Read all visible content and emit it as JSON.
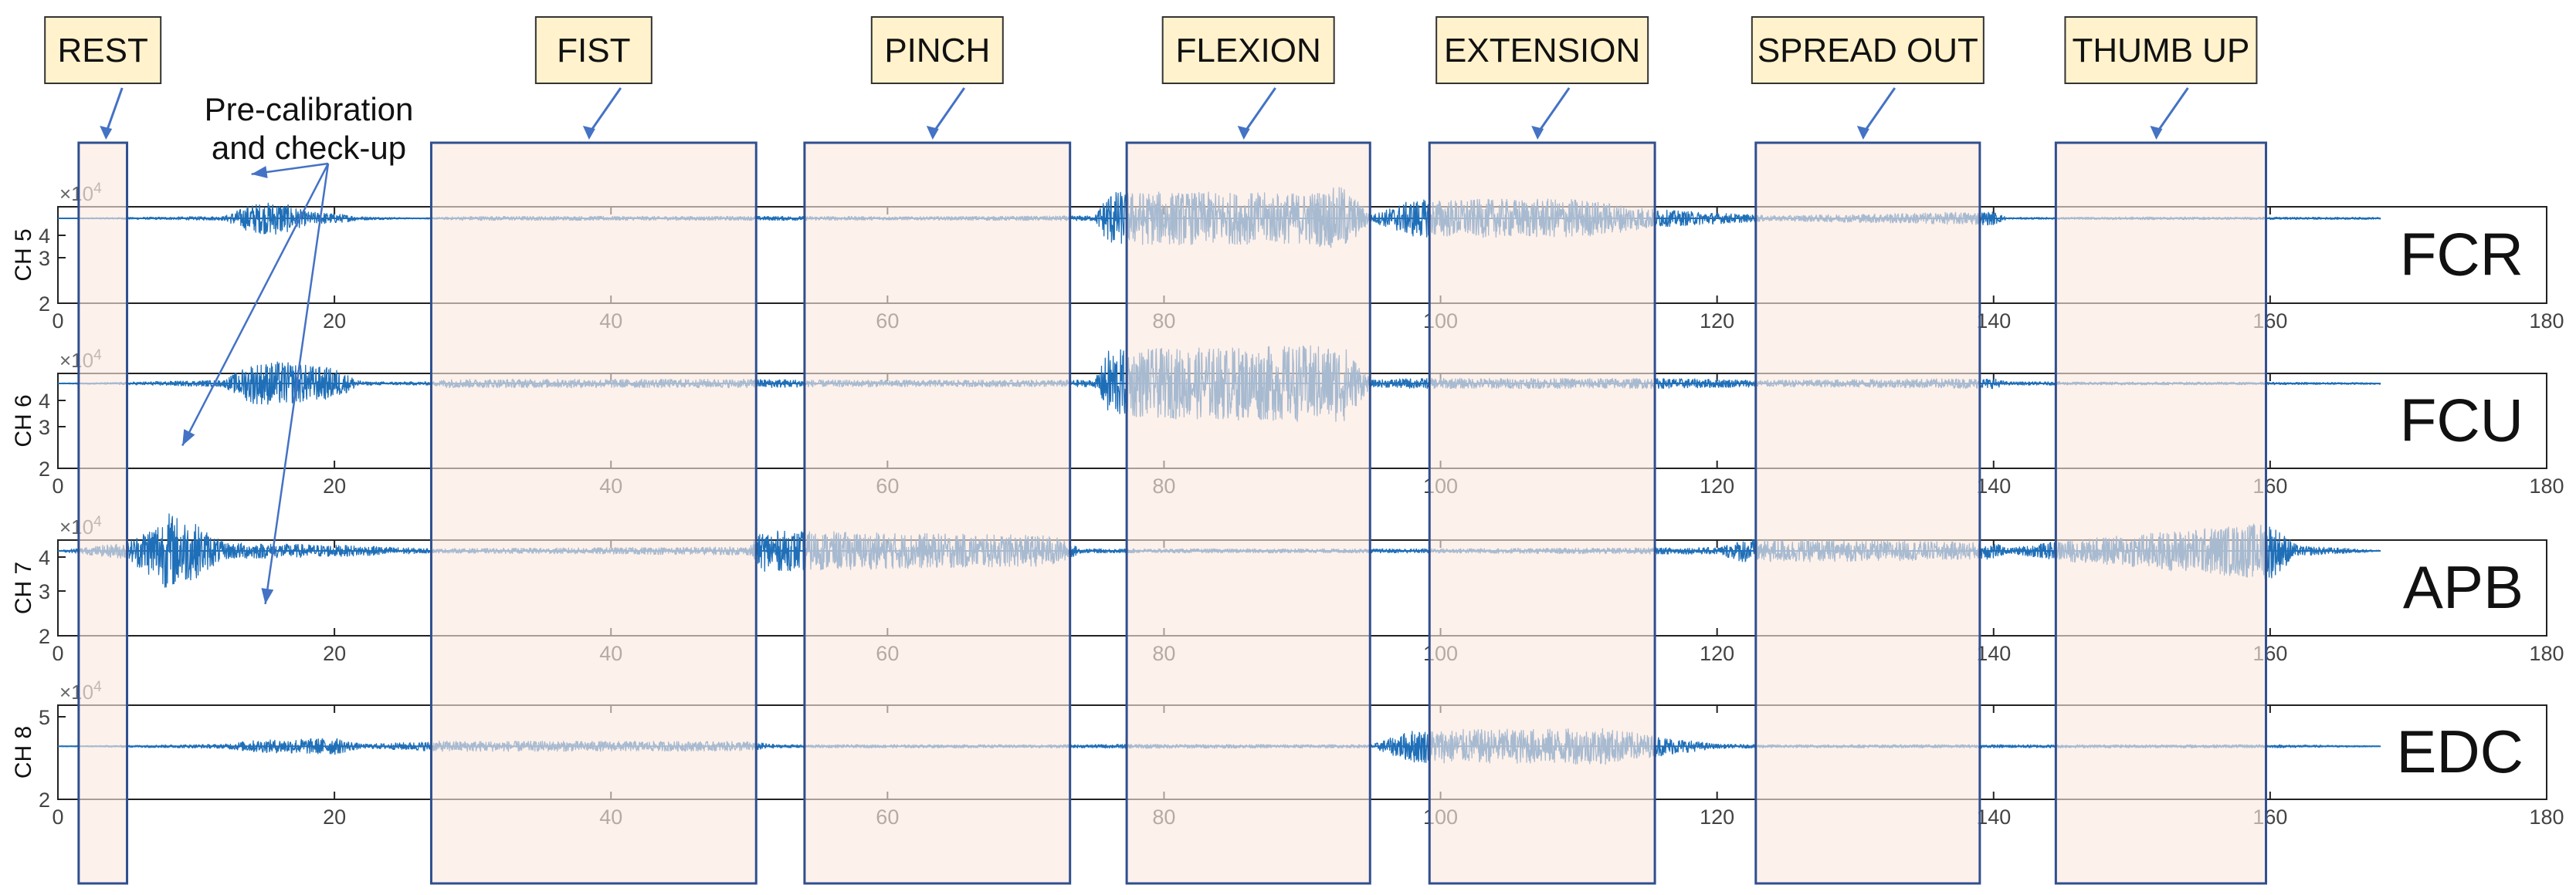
{
  "chart_data": {
    "type": "line",
    "title": "",
    "xlim": [
      0,
      180
    ],
    "x_ticks": [
      "0",
      "20",
      "40",
      "60",
      "80",
      "100",
      "120",
      "140",
      "160",
      "180"
    ],
    "axis_exponent": "×10",
    "exponent_power": "4",
    "panels": [
      {
        "ylabel": "CH 5",
        "muscle": "FCR",
        "ylim": [
          2,
          4
        ],
        "y_ticks": [
          "2",
          "3",
          "4"
        ],
        "baseline": 3.25,
        "envelope": [
          [
            0,
            0.02
          ],
          [
            4,
            0.05
          ],
          [
            12,
            0.12
          ],
          [
            14,
            0.85
          ],
          [
            16,
            1.0
          ],
          [
            18,
            0.4
          ],
          [
            20,
            0.3
          ],
          [
            22,
            0.1
          ],
          [
            26,
            0.03
          ],
          [
            30,
            0.12
          ],
          [
            55,
            0.12
          ],
          [
            62,
            0.1
          ],
          [
            75,
            0.15
          ],
          [
            76,
            1.6
          ],
          [
            90,
            1.5
          ],
          [
            93,
            1.9
          ],
          [
            95,
            0.2
          ],
          [
            98,
            1.1
          ],
          [
            110,
            1.15
          ],
          [
            116,
            0.5
          ],
          [
            124,
            0.15
          ],
          [
            140,
            0.4
          ],
          [
            141,
            0.05
          ],
          [
            150,
            0.08
          ],
          [
            168,
            0.06
          ]
        ]
      },
      {
        "ylabel": "CH 6",
        "muscle": "FCU",
        "ylim": [
          2,
          4
        ],
        "y_ticks": [
          "2",
          "3",
          "4"
        ],
        "baseline": 3.25,
        "envelope": [
          [
            0,
            0.03
          ],
          [
            4,
            0.06
          ],
          [
            12,
            0.2
          ],
          [
            14,
            1.2
          ],
          [
            16,
            1.3
          ],
          [
            20,
            0.9
          ],
          [
            22,
            0.1
          ],
          [
            27,
            0.1
          ],
          [
            28,
            0.25
          ],
          [
            52,
            0.25
          ],
          [
            55,
            0.2
          ],
          [
            75,
            0.2
          ],
          [
            76,
            2.0
          ],
          [
            93,
            2.3
          ],
          [
            95,
            0.2
          ],
          [
            98,
            0.3
          ],
          [
            116,
            0.3
          ],
          [
            124,
            0.2
          ],
          [
            140,
            0.3
          ],
          [
            141,
            0.1
          ],
          [
            168,
            0.06
          ]
        ]
      },
      {
        "ylabel": "CH 7",
        "muscle": "APB",
        "ylim": [
          2,
          4
        ],
        "y_ticks": [
          "2",
          "3",
          "4"
        ],
        "baseline": 3.25,
        "envelope": [
          [
            0,
            0.02
          ],
          [
            5,
            0.5
          ],
          [
            8,
            2.3
          ],
          [
            10,
            1.6
          ],
          [
            12,
            0.5
          ],
          [
            22,
            0.3
          ],
          [
            27,
            0.12
          ],
          [
            50,
            0.25
          ],
          [
            51,
            1.2
          ],
          [
            72,
            0.9
          ],
          [
            74,
            0.12
          ],
          [
            96,
            0.12
          ],
          [
            120,
            0.2
          ],
          [
            122,
            0.7
          ],
          [
            140,
            0.5
          ],
          [
            141,
            0.15
          ],
          [
            145,
            0.6
          ],
          [
            160,
            1.7
          ],
          [
            162,
            0.3
          ],
          [
            168,
            0.04
          ]
        ]
      },
      {
        "ylabel": "CH 8",
        "muscle": "EDC",
        "ylim": [
          2,
          6
        ],
        "y_ticks": [
          "2",
          "5"
        ],
        "baseline": 3.25,
        "envelope": [
          [
            0,
            0.03
          ],
          [
            12,
            0.2
          ],
          [
            14,
            0.55
          ],
          [
            20,
            0.8
          ],
          [
            22,
            0.2
          ],
          [
            28,
            0.5
          ],
          [
            50,
            0.45
          ],
          [
            52,
            0.15
          ],
          [
            74,
            0.15
          ],
          [
            77,
            0.2
          ],
          [
            95,
            0.15
          ],
          [
            98,
            1.55
          ],
          [
            112,
            1.7
          ],
          [
            116,
            0.9
          ],
          [
            120,
            0.2
          ],
          [
            124,
            0.15
          ],
          [
            160,
            0.15
          ],
          [
            168,
            0.05
          ]
        ]
      }
    ],
    "regions": [
      {
        "label": "REST",
        "x": [
          1.5,
          5
        ]
      },
      {
        "label": "FIST",
        "x": [
          27,
          50.5
        ]
      },
      {
        "label": "PINCH",
        "x": [
          54,
          73.2
        ]
      },
      {
        "label": "FLEXION",
        "x": [
          77.3,
          94.9
        ]
      },
      {
        "label": "EXTENSION",
        "x": [
          99.2,
          115.5
        ]
      },
      {
        "label": "SPREAD OUT",
        "x": [
          122.8,
          139
        ]
      },
      {
        "label": "THUMB UP",
        "x": [
          144.5,
          159.7
        ]
      }
    ],
    "annotation": {
      "lines": [
        "Pre-calibration",
        "and check-up"
      ],
      "targets": [
        {
          "panel": 0,
          "x": 14,
          "y": 3.9
        },
        {
          "panel": 2,
          "x": 9,
          "y": 4.8
        },
        {
          "panel": 3,
          "x": 15,
          "y": 6.6
        }
      ]
    },
    "colors": {
      "signal": "#1f6fb8",
      "region_fill": "#fce9df",
      "region_stroke": "#2f4f8f",
      "label_fill": "#fff2cc",
      "arrow": "#4472c4",
      "axis": "#222222",
      "tick_text": "#444444"
    }
  }
}
